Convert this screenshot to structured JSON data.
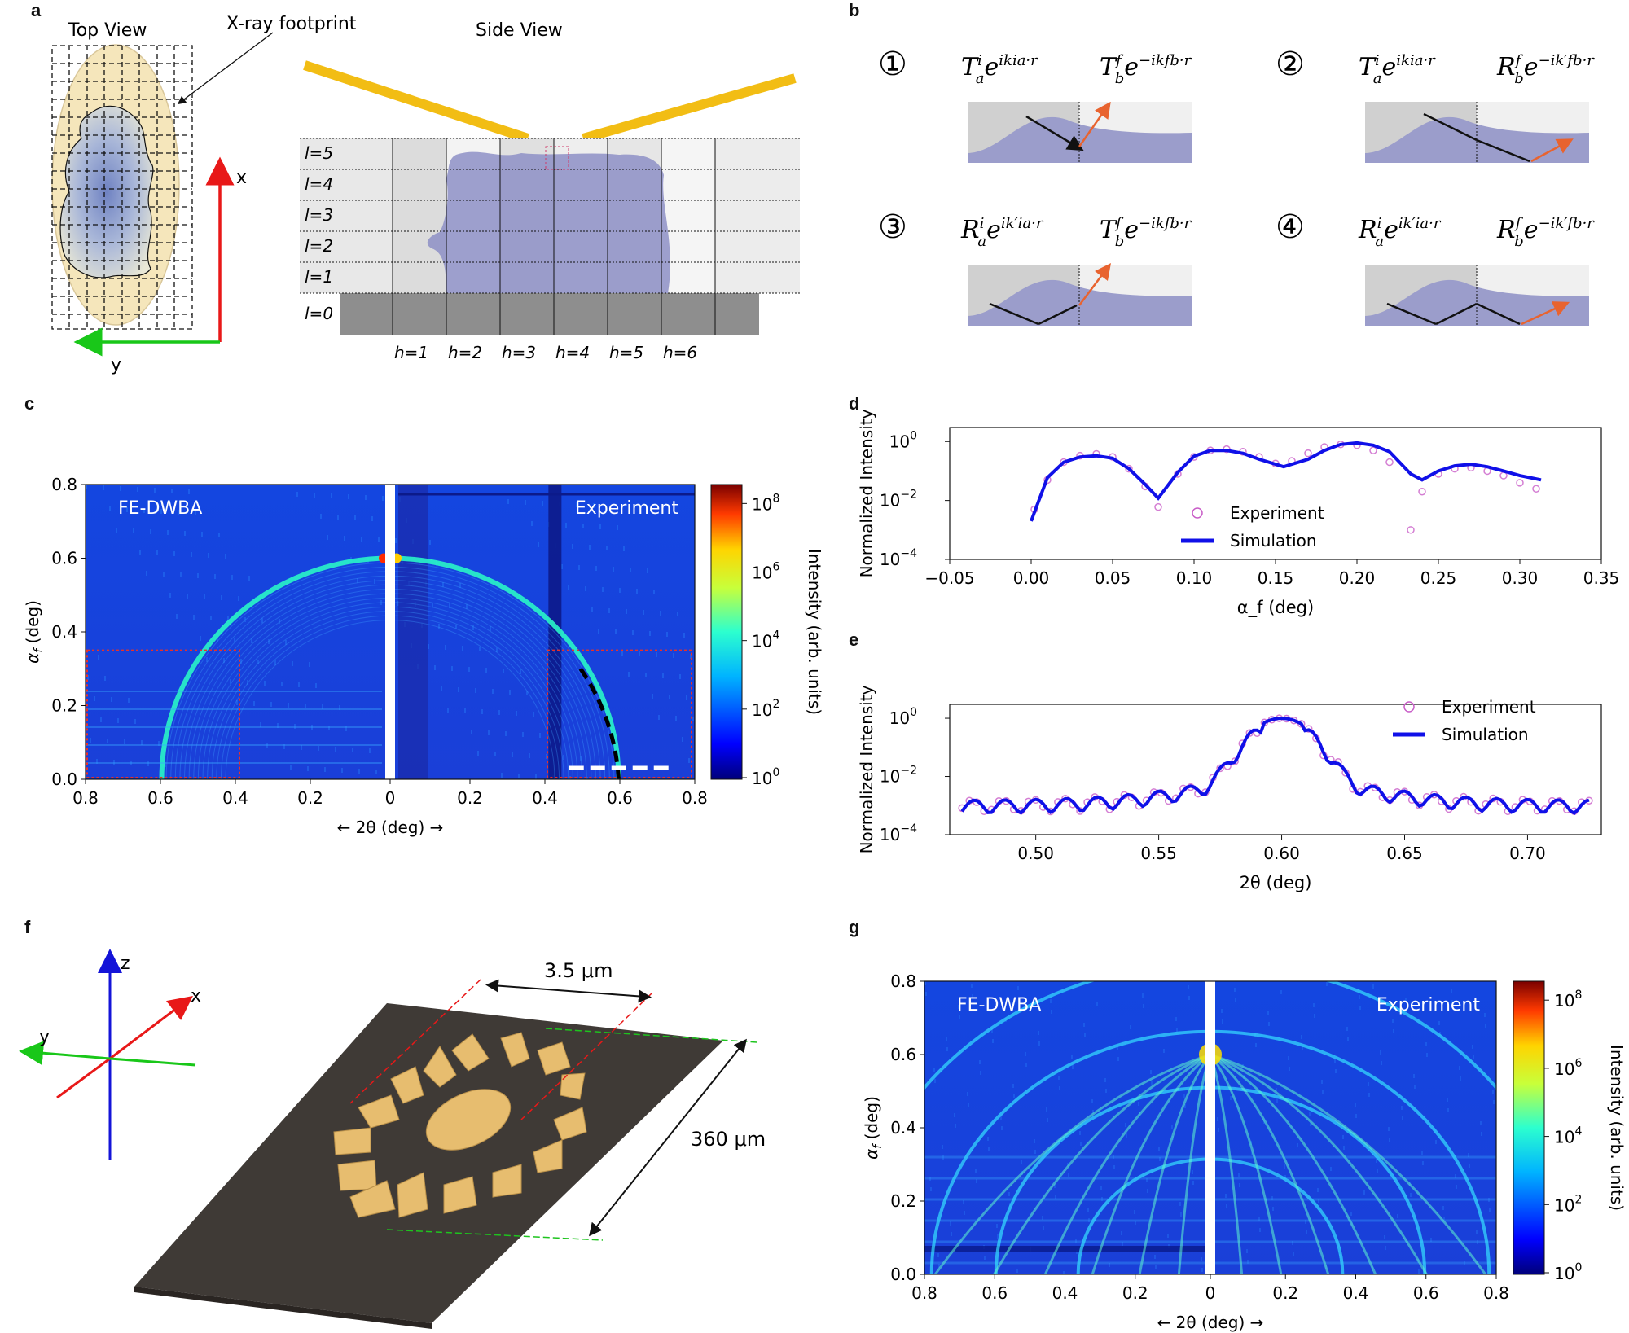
{
  "panel_labels": {
    "a": "a",
    "b": "b",
    "c": "c",
    "d": "d",
    "e": "e",
    "f": "f",
    "g": "g"
  },
  "panel_a": {
    "top_view": "Top View",
    "side_view": "Side View",
    "footprint": "X-ray footprint",
    "axis_x": "x",
    "axis_y": "y",
    "layers": [
      "l=5",
      "l=4",
      "l=3",
      "l=2",
      "l=1",
      "l=0"
    ],
    "columns": [
      "h=1",
      "h=2",
      "h=3",
      "h=4",
      "h=5",
      "h=6"
    ],
    "colors": {
      "footprint": "#f5e6bb",
      "beam": "#f2bd14",
      "sample": "#8a8cc4",
      "substrate": "#8e8e8e"
    }
  },
  "panel_b": {
    "items": [
      {
        "num": "①",
        "incoming": "T",
        "in_sup": "i",
        "in_sub": "a",
        "in_exp": "e",
        "in_exp_sup": "ik",
        "in_k_sup": "i",
        "in_k_sub": "a",
        "in_dot": "·r",
        "outgoing": "T",
        "out_sup": "f",
        "out_sub": "b",
        "out_exp_sup": "−ik",
        "out_k_sup": "f",
        "out_k_sub": "b"
      },
      {
        "num": "②",
        "incoming": "T",
        "in_sup": "i",
        "in_sub": "a",
        "in_exp": "e",
        "in_exp_sup": "ik",
        "in_k_sup": "i",
        "in_k_sub": "a",
        "in_dot": "·r",
        "outgoing": "R",
        "out_sup": "f",
        "out_sub": "b",
        "out_exp_sup": "−ik",
        "out_k_sup": "′f",
        "out_k_sub": "b"
      },
      {
        "num": "③",
        "incoming": "R",
        "in_sup": "i",
        "in_sub": "a",
        "in_exp": "e",
        "in_exp_sup": "ik",
        "in_k_sup": "′i",
        "in_k_sub": "a",
        "in_dot": "·r",
        "outgoing": "T",
        "out_sup": "f",
        "out_sub": "b",
        "out_exp_sup": "−ik",
        "out_k_sup": "f",
        "out_k_sub": "b"
      },
      {
        "num": "④",
        "incoming": "R",
        "in_sup": "i",
        "in_sub": "a",
        "in_exp": "e",
        "in_exp_sup": "ik",
        "in_k_sup": "′i",
        "in_k_sub": "a",
        "in_dot": "·r",
        "outgoing": "R",
        "out_sup": "f",
        "out_sub": "b",
        "out_exp_sup": "−ik",
        "out_k_sup": "′f",
        "out_k_sub": "b"
      }
    ],
    "colors": {
      "incoming": "#111111",
      "outgoing": "#e8632f"
    }
  },
  "panel_c": {
    "left_label": "FE-DWBA",
    "right_label": "Experiment",
    "ylabel": "α",
    "ylabel_sub": "f",
    "ylabel_unit": " (deg)",
    "xlabel": "←  2θ (deg)  →",
    "yticks": [
      "0.0",
      "0.2",
      "0.4",
      "0.6",
      "0.8"
    ],
    "xticks": [
      "0.8",
      "0.6",
      "0.4",
      "0.2",
      "0",
      "0.2",
      "0.4",
      "0.6",
      "0.8"
    ],
    "colorbar_label": "Intensity (arb. units)",
    "colorbar_ticks": [
      "10",
      "10",
      "10",
      "10",
      "10"
    ],
    "colorbar_exps": [
      "0",
      "2",
      "4",
      "6",
      "8"
    ]
  },
  "panel_g": {
    "left_label": "FE-DWBA",
    "right_label": "Experiment",
    "ylabel": "α",
    "ylabel_sub": "f",
    "ylabel_unit": " (deg)",
    "xlabel": "←  2θ (deg)  →",
    "yticks": [
      "0.0",
      "0.2",
      "0.4",
      "0.6",
      "0.8"
    ],
    "xticks": [
      "0.8",
      "0.6",
      "0.4",
      "0.2",
      "0",
      "0.2",
      "0.4",
      "0.6",
      "0.8"
    ],
    "colorbar_label": "Intensity (arb. units)",
    "colorbar_ticks": [
      "10",
      "10",
      "10",
      "10",
      "10"
    ],
    "colorbar_exps": [
      "0",
      "2",
      "4",
      "6",
      "8"
    ]
  },
  "panel_f": {
    "dim_width": "3.5 μm",
    "dim_length": "360 μm",
    "axis_x": "x",
    "axis_y": "y",
    "axis_z": "z",
    "colors": {
      "substrate": "#3f3a36",
      "feature": "#e7bd6f"
    }
  },
  "chart_data": [
    {
      "id": "d",
      "type": "scatter",
      "xlabel": "α_f (deg)",
      "ylabel": "Normalized Intensity",
      "yscale": "log",
      "xlim": [
        -0.05,
        0.35
      ],
      "ylim": [
        0.0001,
        3
      ],
      "xticks": [
        "−0.05",
        "0.00",
        "0.05",
        "0.10",
        "0.15",
        "0.20",
        "0.25",
        "0.30",
        "0.35"
      ],
      "yticks": [
        "10",
        "10",
        "10"
      ],
      "ytick_exps": [
        "−4",
        "−2",
        "0"
      ],
      "legend": [
        "Experiment",
        "Simulation"
      ],
      "series": [
        {
          "name": "Experiment",
          "style": "open-circles",
          "color": "#c95ec8",
          "x": [
            0.002,
            0.01,
            0.02,
            0.03,
            0.04,
            0.05,
            0.06,
            0.07,
            0.078,
            0.09,
            0.1,
            0.11,
            0.12,
            0.13,
            0.14,
            0.15,
            0.16,
            0.17,
            0.18,
            0.19,
            0.2,
            0.21,
            0.22,
            0.233,
            0.24,
            0.25,
            0.26,
            0.27,
            0.28,
            0.29,
            0.3,
            0.31
          ],
          "y": [
            0.005,
            0.05,
            0.2,
            0.33,
            0.38,
            0.3,
            0.12,
            0.03,
            0.006,
            0.08,
            0.3,
            0.5,
            0.55,
            0.45,
            0.3,
            0.18,
            0.22,
            0.4,
            0.65,
            0.8,
            0.75,
            0.5,
            0.2,
            0.001,
            0.02,
            0.08,
            0.12,
            0.13,
            0.1,
            0.07,
            0.04,
            0.025
          ]
        },
        {
          "name": "Simulation",
          "style": "line",
          "color": "#1010e8",
          "x": [
            0.0,
            0.01,
            0.02,
            0.03,
            0.04,
            0.05,
            0.06,
            0.07,
            0.078,
            0.09,
            0.1,
            0.11,
            0.12,
            0.13,
            0.14,
            0.155,
            0.17,
            0.18,
            0.19,
            0.2,
            0.21,
            0.22,
            0.233,
            0.24,
            0.25,
            0.26,
            0.27,
            0.28,
            0.29,
            0.3,
            0.313
          ],
          "y": [
            0.002,
            0.06,
            0.2,
            0.3,
            0.33,
            0.27,
            0.12,
            0.035,
            0.012,
            0.09,
            0.32,
            0.5,
            0.5,
            0.4,
            0.25,
            0.14,
            0.25,
            0.5,
            0.8,
            0.9,
            0.75,
            0.45,
            0.08,
            0.05,
            0.1,
            0.15,
            0.17,
            0.14,
            0.1,
            0.07,
            0.05
          ]
        }
      ]
    },
    {
      "id": "e",
      "type": "scatter",
      "xlabel": "2θ (deg)",
      "ylabel": "Normalized Intensity",
      "yscale": "log",
      "xlim": [
        0.465,
        0.73
      ],
      "ylim": [
        0.0001,
        3
      ],
      "xticks": [
        "0.50",
        "0.55",
        "0.60",
        "0.65",
        "0.70"
      ],
      "yticks": [
        "10",
        "10",
        "10"
      ],
      "ytick_exps": [
        "−4",
        "−2",
        "0"
      ],
      "legend": [
        "Experiment",
        "Simulation"
      ],
      "peak_x": 0.6,
      "peak_y": 1.0,
      "series": [
        {
          "name": "Experiment",
          "style": "open-circles",
          "color": "#c95ec8",
          "x_range": [
            0.47,
            0.725
          ]
        },
        {
          "name": "Simulation",
          "style": "line",
          "color": "#1010e8",
          "x_range": [
            0.47,
            0.725
          ]
        }
      ]
    }
  ]
}
